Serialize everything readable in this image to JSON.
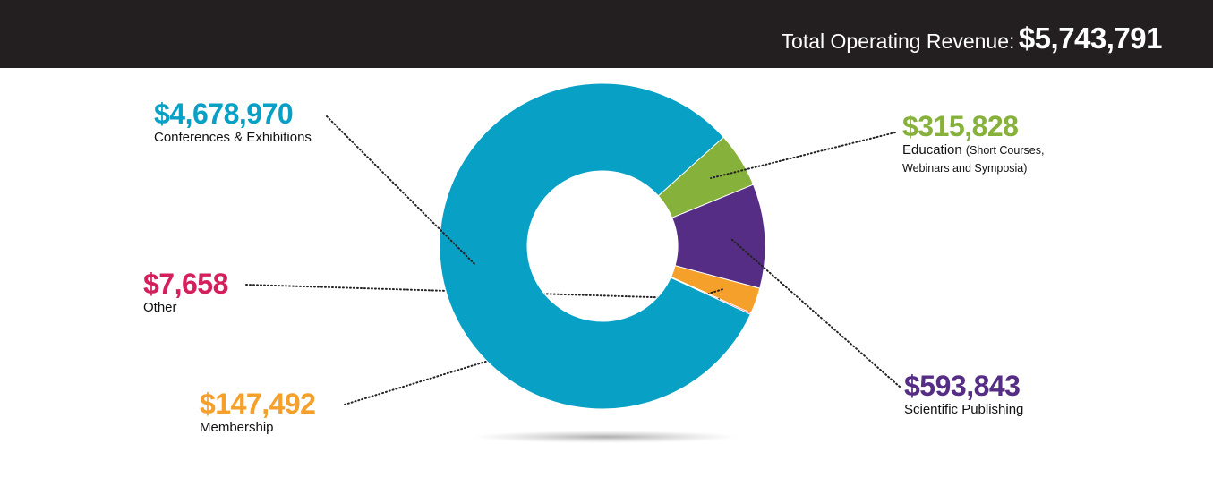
{
  "chart_data": {
    "type": "donut",
    "title": "Total Operating Revenue:",
    "total": {
      "value": 5743791,
      "label": "$5,743,791"
    },
    "categories": [
      "Education",
      "Scientific Publishing",
      "Membership",
      "Other",
      "Conferences & Exhibitions"
    ],
    "values": [
      315828,
      593843,
      147492,
      7658,
      4678970
    ],
    "value_labels": [
      "$315,828",
      "$593,843",
      "$147,492",
      "$7,658",
      "$4,678,970"
    ],
    "colors": [
      "#86b13a",
      "#562d84",
      "#f6a02c",
      "#d41f5d",
      "#09a0c6"
    ],
    "annotations": [
      "(Short Courses, Webinars and Symposia)"
    ]
  }
}
